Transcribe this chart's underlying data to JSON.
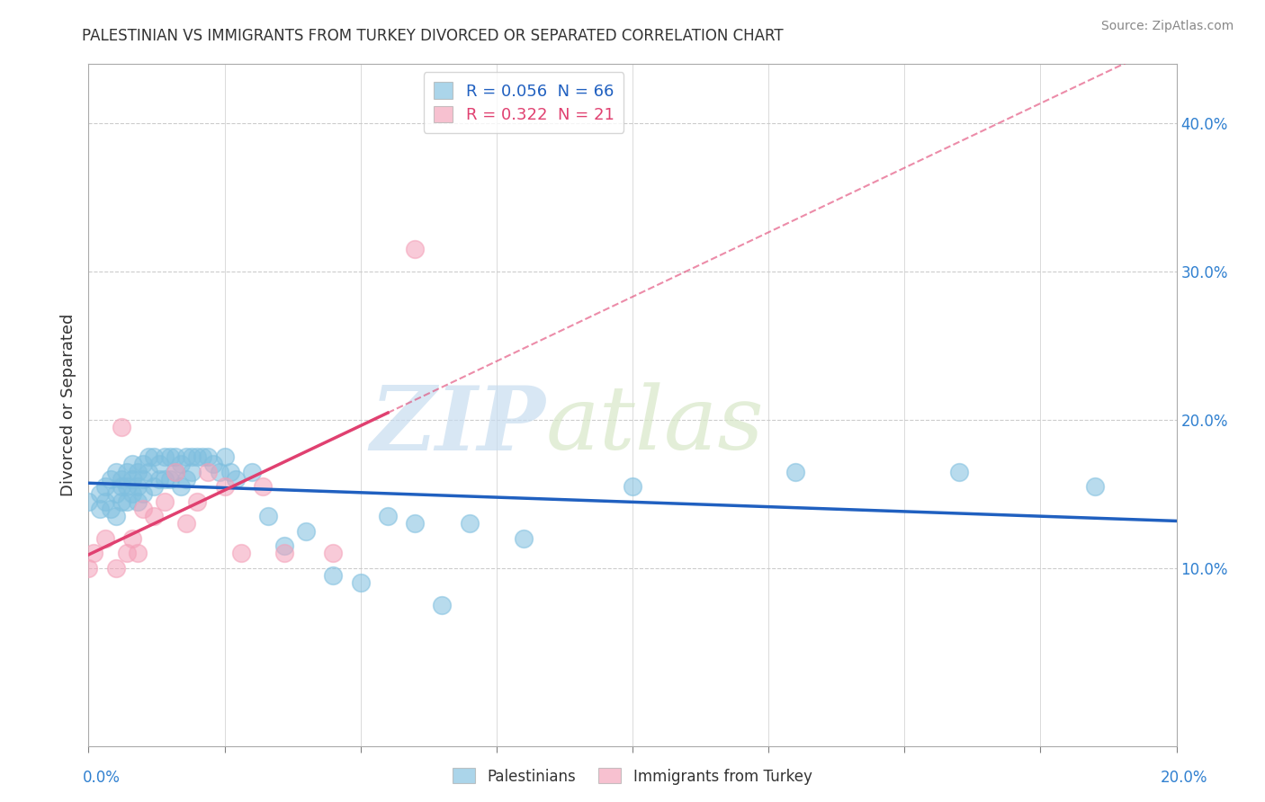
{
  "title": "PALESTINIAN VS IMMIGRANTS FROM TURKEY DIVORCED OR SEPARATED CORRELATION CHART",
  "source": "Source: ZipAtlas.com",
  "ylabel": "Divorced or Separated",
  "r1": 0.056,
  "n1": 66,
  "r2": 0.322,
  "n2": 21,
  "color_blue": "#7fbfdf",
  "color_pink": "#f4a0b8",
  "color_blue_line": "#2060c0",
  "color_pink_line": "#e04070",
  "xlim": [
    0.0,
    0.2
  ],
  "ylim": [
    -0.02,
    0.44
  ],
  "ytick_positions": [
    0.1,
    0.2,
    0.3,
    0.4
  ],
  "ytick_labels": [
    "10.0%",
    "20.0%",
    "30.0%",
    "40.0%"
  ],
  "background": "#ffffff",
  "watermark_zip": "ZIP",
  "watermark_atlas": "atlas",
  "legend1_label": "Palestinians",
  "legend2_label": "Immigrants from Turkey",
  "blue_scatter_x": [
    0.0,
    0.002,
    0.002,
    0.003,
    0.003,
    0.004,
    0.004,
    0.005,
    0.005,
    0.005,
    0.006,
    0.006,
    0.006,
    0.007,
    0.007,
    0.007,
    0.008,
    0.008,
    0.008,
    0.009,
    0.009,
    0.009,
    0.01,
    0.01,
    0.01,
    0.011,
    0.011,
    0.012,
    0.012,
    0.013,
    0.013,
    0.014,
    0.014,
    0.015,
    0.015,
    0.016,
    0.016,
    0.017,
    0.017,
    0.018,
    0.018,
    0.019,
    0.019,
    0.02,
    0.021,
    0.022,
    0.023,
    0.024,
    0.025,
    0.026,
    0.027,
    0.03,
    0.033,
    0.036,
    0.04,
    0.045,
    0.05,
    0.055,
    0.06,
    0.065,
    0.07,
    0.08,
    0.1,
    0.13,
    0.16,
    0.185
  ],
  "blue_scatter_y": [
    0.145,
    0.15,
    0.14,
    0.155,
    0.145,
    0.16,
    0.14,
    0.165,
    0.15,
    0.135,
    0.16,
    0.155,
    0.145,
    0.165,
    0.155,
    0.145,
    0.17,
    0.16,
    0.15,
    0.165,
    0.155,
    0.145,
    0.17,
    0.16,
    0.15,
    0.175,
    0.165,
    0.175,
    0.155,
    0.17,
    0.16,
    0.175,
    0.16,
    0.175,
    0.16,
    0.175,
    0.165,
    0.17,
    0.155,
    0.175,
    0.16,
    0.175,
    0.165,
    0.175,
    0.175,
    0.175,
    0.17,
    0.165,
    0.175,
    0.165,
    0.16,
    0.165,
    0.135,
    0.115,
    0.125,
    0.095,
    0.09,
    0.135,
    0.13,
    0.075,
    0.13,
    0.12,
    0.155,
    0.165,
    0.165,
    0.155
  ],
  "pink_scatter_x": [
    0.0,
    0.001,
    0.003,
    0.005,
    0.006,
    0.007,
    0.008,
    0.009,
    0.01,
    0.012,
    0.014,
    0.016,
    0.018,
    0.02,
    0.022,
    0.025,
    0.028,
    0.032,
    0.036,
    0.045,
    0.06
  ],
  "pink_scatter_y": [
    0.1,
    0.11,
    0.12,
    0.1,
    0.195,
    0.11,
    0.12,
    0.11,
    0.14,
    0.135,
    0.145,
    0.165,
    0.13,
    0.145,
    0.165,
    0.155,
    0.11,
    0.155,
    0.11,
    0.11,
    0.315
  ]
}
